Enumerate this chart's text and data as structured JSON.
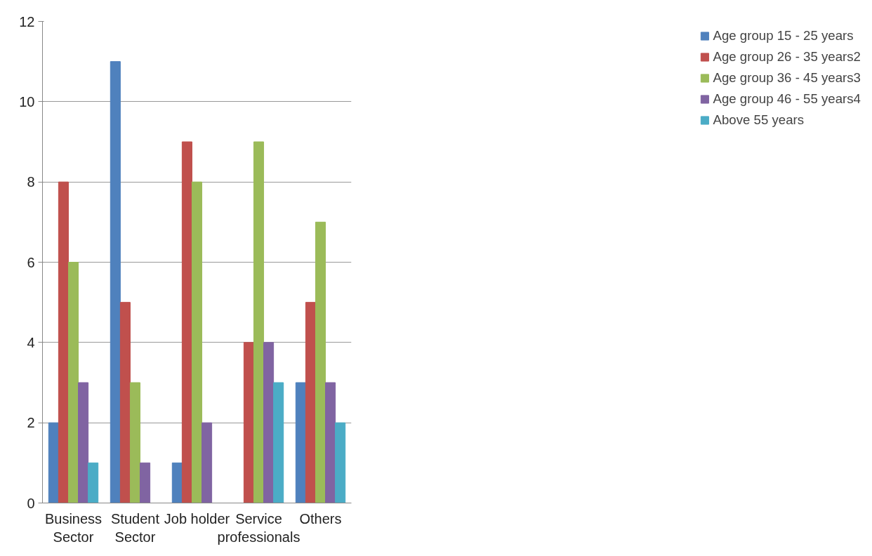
{
  "chart_data": {
    "type": "bar",
    "categories": [
      "Business Sector",
      "Student Sector",
      "Job holder",
      "Service professionals",
      "Others"
    ],
    "series": [
      {
        "name": "Age group 15 - 25 years",
        "color": "#4f81bd",
        "values": [
          2,
          11,
          1,
          0,
          3
        ]
      },
      {
        "name": "Age group 26 - 35 years2",
        "color": "#c0504d",
        "values": [
          8,
          5,
          9,
          4,
          5
        ]
      },
      {
        "name": "Age group 36 - 45 years3",
        "color": "#9bbb59",
        "values": [
          6,
          3,
          8,
          9,
          7
        ]
      },
      {
        "name": "Age group 46 - 55 years4",
        "color": "#8064a2",
        "values": [
          3,
          1,
          2,
          4,
          3
        ]
      },
      {
        "name": "Above 55 years",
        "color": "#4bacc6",
        "values": [
          1,
          0,
          0,
          3,
          2
        ]
      }
    ],
    "ylim": [
      0,
      12
    ],
    "yticks": [
      0,
      2,
      4,
      6,
      8,
      10,
      12
    ],
    "grid": "y",
    "legend": "right"
  }
}
